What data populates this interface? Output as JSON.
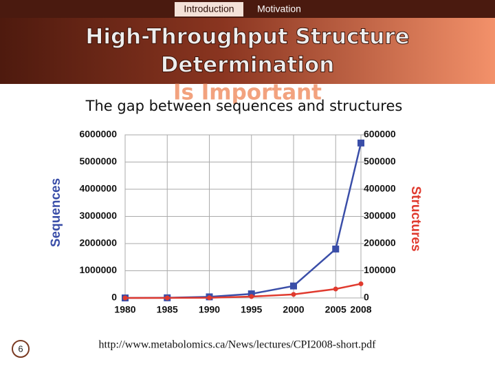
{
  "nav": {
    "items": [
      "Introduction",
      "Motivation"
    ],
    "active": 0
  },
  "header": {
    "title_lines": [
      "High-Throughput Structure",
      "Determination",
      "Is Important"
    ]
  },
  "slide_number": "6",
  "source": "http://www.metabolomics.ca/News/lectures/CPI2008-short.pdf",
  "chart_data": {
    "type": "line",
    "title": "The gap between sequences and structures",
    "y_label": "Sequences",
    "y2_label": "Structures",
    "x": [
      1980,
      1985,
      1990,
      1995,
      2000,
      2005,
      2008
    ],
    "xlim": [
      1980,
      2008
    ],
    "xticks": [
      1980,
      1985,
      1990,
      1995,
      2000,
      2005,
      2008
    ],
    "ylim": [
      0,
      6000000
    ],
    "yticks": [
      0,
      1000000,
      2000000,
      3000000,
      4000000,
      5000000,
      6000000
    ],
    "y2lim": [
      0,
      600000
    ],
    "y2ticks": [
      0,
      100000,
      200000,
      300000,
      400000,
      500000,
      600000
    ],
    "grid": true,
    "series": [
      {
        "name": "Sequences",
        "color": "#3a4ea8",
        "marker": "square",
        "values": [
          0,
          5000,
          40000,
          150000,
          440000,
          1800000,
          5700000
        ]
      },
      {
        "name": "Structures",
        "color": "#e03a2e",
        "marker": "circle",
        "axis": "y2",
        "values": [
          0,
          100,
          500,
          5000,
          13000,
          33000,
          52000
        ]
      }
    ]
  }
}
